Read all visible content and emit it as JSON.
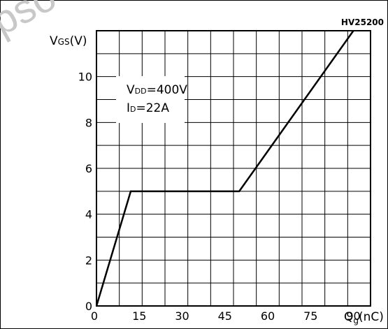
{
  "watermark": "pso",
  "chart_data": {
    "type": "line",
    "id_label": "HV25200",
    "ylabel": "V",
    "ylabel_sub": "GS",
    "ylabel_unit": "(V)",
    "xlabel": "Q",
    "xlabel_sub": "g",
    "xlabel_unit": "(nC)",
    "xlim": [
      0,
      96
    ],
    "ylim": [
      0,
      12
    ],
    "xticks": [
      0,
      15,
      30,
      45,
      60,
      75,
      90
    ],
    "yticks": [
      0,
      2,
      4,
      6,
      8,
      10
    ],
    "grid": true,
    "annotations": [
      {
        "main": "V",
        "sub": "DD",
        "rest": "=400V"
      },
      {
        "main": "I",
        "sub": "D",
        "rest": "=22A"
      }
    ],
    "series": [
      {
        "x": [
          0,
          12,
          50,
          90
        ],
        "y": [
          0,
          5,
          5,
          12
        ]
      }
    ]
  }
}
